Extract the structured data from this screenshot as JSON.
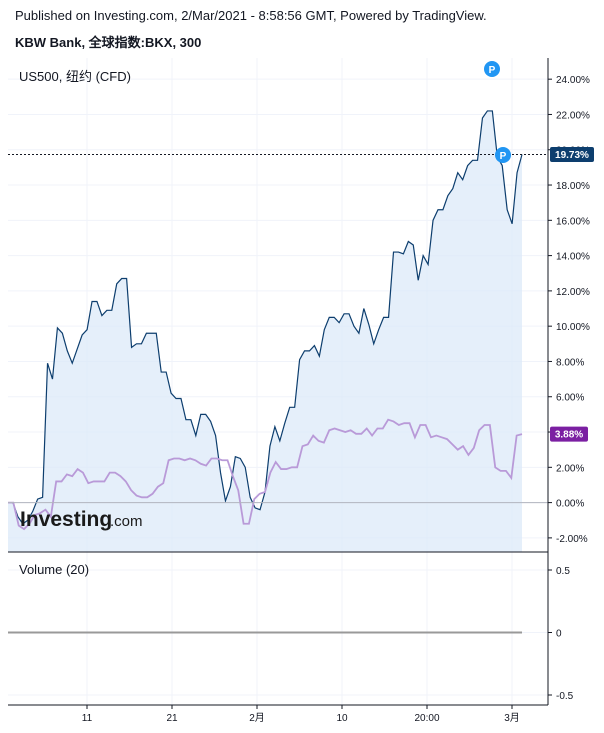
{
  "header": {
    "published": "Published on Investing.com, 2/Mar/2021 - 8:58:56 GMT, Powered by TradingView.",
    "title": "KBW Bank, 全球指数:BKX, 300"
  },
  "legend": {
    "compare_symbol": "US500, 纽约 (CFD)",
    "volume_label": "Volume (20)",
    "markers": [
      "P",
      "P"
    ]
  },
  "watermark": {
    "brand": "Investing",
    "suffix": ".com"
  },
  "price_labels": {
    "main": "19.73%",
    "compare": "3.88%"
  },
  "colors": {
    "main_line": "#0d3e6e",
    "area_fill": "#dce9f8",
    "compare_line": "#b99ad8",
    "main_badge": "#0d3e6e",
    "compare_badge": "#7b1fa2",
    "marker": "#2196f3"
  },
  "chart_data": [
    {
      "type": "line",
      "title": "KBW Bank, 全球指数:BKX, 300",
      "y_unit": "%",
      "ylim": [
        -2.8,
        25.2
      ],
      "y_ticks": [
        "24.00%",
        "22.00%",
        "20.00%",
        "18.00%",
        "16.00%",
        "14.00%",
        "12.00%",
        "10.00%",
        "8.00%",
        "6.00%",
        "4.00%",
        "2.00%",
        "0.00%",
        "-2.00%"
      ],
      "x_tick_labels": [
        "11",
        "21",
        "2月",
        "10",
        "20:00",
        "3月"
      ],
      "grid": true,
      "series": [
        {
          "name": "KBW Bank",
          "values": [
            0,
            0,
            -0.8,
            -1.2,
            -1.0,
            -0.5,
            0.2,
            0.3,
            7.9,
            7.0,
            9.9,
            9.6,
            8.6,
            7.9,
            8.7,
            9.5,
            9.8,
            11.4,
            11.4,
            10.6,
            10.9,
            10.9,
            12.4,
            12.7,
            12.7,
            8.8,
            9.0,
            9.0,
            9.6,
            9.6,
            9.6,
            7.4,
            7.4,
            6.2,
            5.9,
            5.9,
            4.7,
            4.7,
            3.8,
            5.0,
            5.0,
            4.6,
            3.8,
            1.7,
            0.1,
            0.9,
            2.6,
            2.5,
            2.0,
            0.3,
            -0.3,
            -0.4,
            0.6,
            3.2,
            4.3,
            3.5,
            4.5,
            5.4,
            5.4,
            8.1,
            8.6,
            8.6,
            8.9,
            8.3,
            9.8,
            10.5,
            10.5,
            10.2,
            10.7,
            10.7,
            10.0,
            9.6,
            11.0,
            10.1,
            9.0,
            9.8,
            10.5,
            10.5,
            14.2,
            14.2,
            14.1,
            14.8,
            14.6,
            12.6,
            14.0,
            13.5,
            16.0,
            16.6,
            16.6,
            17.4,
            17.8,
            18.7,
            18.3,
            19.1,
            19.4,
            19.4,
            21.8,
            22.2,
            22.2,
            19.6,
            19.1,
            16.6,
            15.8,
            18.7,
            19.73
          ]
        },
        {
          "name": "US500, 纽约 (CFD)",
          "values": [
            0,
            0,
            -1.3,
            -1.5,
            -1.2,
            -0.7,
            -0.6,
            -0.4,
            -0.8,
            1.2,
            1.2,
            1.6,
            1.5,
            1.9,
            1.7,
            1.1,
            1.2,
            1.2,
            1.2,
            1.7,
            1.7,
            1.5,
            1.2,
            0.7,
            0.4,
            0.3,
            0.3,
            0.5,
            0.9,
            1.1,
            2.4,
            2.5,
            2.5,
            2.4,
            2.5,
            2.4,
            2.2,
            2.1,
            2.5,
            2.5,
            2.4,
            2.4,
            1.5,
            0.7,
            -1.2,
            -1.2,
            0.2,
            0.5,
            0.6,
            1.7,
            2.3,
            1.9,
            1.9,
            2.0,
            2.0,
            3.2,
            3.3,
            3.8,
            3.5,
            3.4,
            4.1,
            4.2,
            4.1,
            4.0,
            4.1,
            3.9,
            3.9,
            4.2,
            3.8,
            4.2,
            4.2,
            4.7,
            4.6,
            4.4,
            4.5,
            4.5,
            3.7,
            4.4,
            4.4,
            3.7,
            3.8,
            3.7,
            3.6,
            3.3,
            3.0,
            3.2,
            2.7,
            3.1,
            4.1,
            4.4,
            4.4,
            2.0,
            1.8,
            1.8,
            1.4,
            3.8,
            3.88
          ]
        }
      ]
    },
    {
      "type": "bar",
      "title": "Volume (20)",
      "y_ticks": [
        "0.5",
        "0",
        "-0.5"
      ],
      "values": [
        0
      ]
    }
  ]
}
